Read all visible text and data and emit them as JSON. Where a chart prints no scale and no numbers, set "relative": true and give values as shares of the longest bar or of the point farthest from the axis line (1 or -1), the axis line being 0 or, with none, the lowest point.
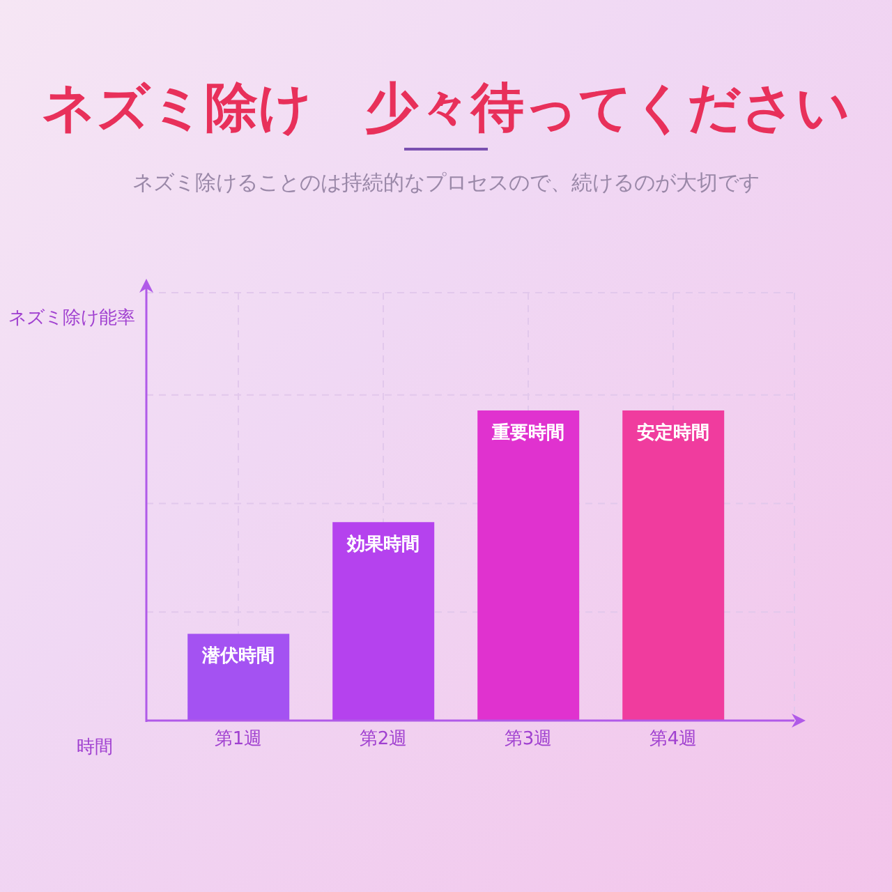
{
  "chart_data": {
    "type": "bar",
    "title": "ネズミ除け　少々待ってください",
    "subtitle": "ネズミ除けることのは持続的なプロセスので、続けるのが大切です",
    "xlabel": "時間",
    "ylabel": "ネズミ除け能率",
    "categories": [
      "第1週",
      "第2週",
      "第3週",
      "第4週"
    ],
    "values": [
      0.28,
      0.64,
      1,
      1
    ],
    "colors": [
      "#a452f2",
      "#b542ee",
      "#e032cf",
      "#f03c9e"
    ],
    "relative": true,
    "grid": true,
    "annotations": [
      {
        "text": "潜伏時間",
        "x": "第1週",
        "y": 0.28
      },
      {
        "text": "効果時間",
        "x": "第2週",
        "y": 0.64
      },
      {
        "text": "重要時間",
        "x": "第3週",
        "y": 1
      },
      {
        "text": "安定時間",
        "x": "第4週",
        "y": 1
      }
    ]
  }
}
